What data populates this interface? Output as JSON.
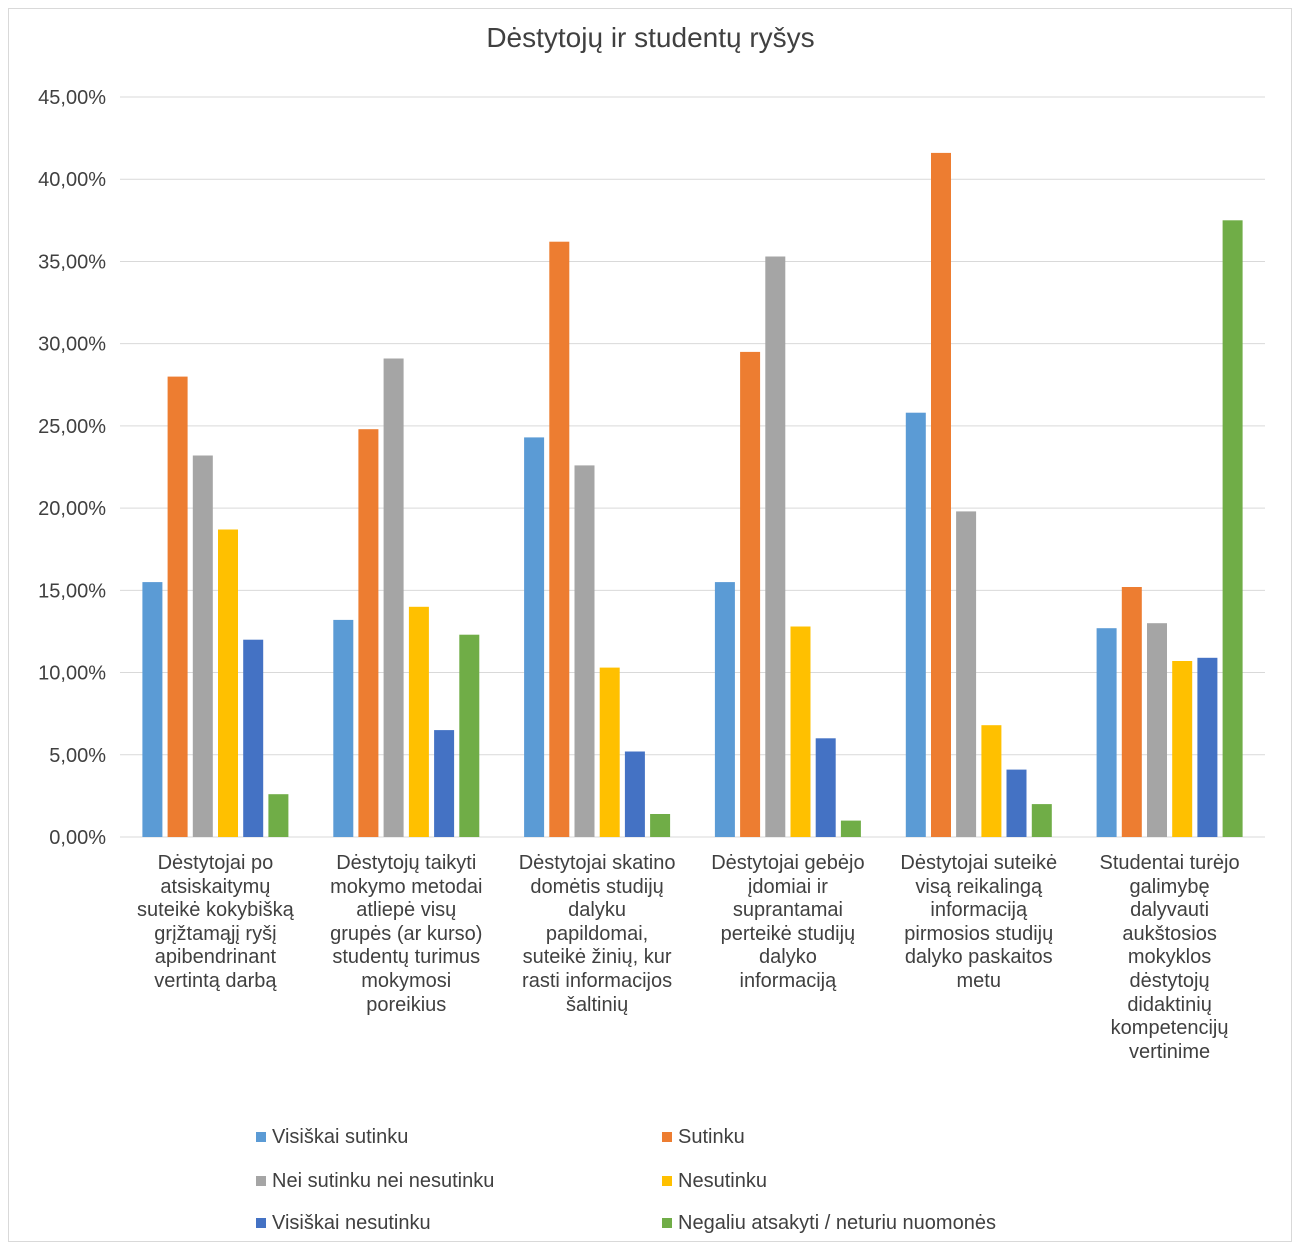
{
  "chart_data": {
    "type": "bar",
    "title": "Dėstytojų ir studentų ryšys",
    "xlabel": "",
    "ylabel": "",
    "ylim": [
      0,
      0.45
    ],
    "yticks": [
      "0,00%",
      "5,00%",
      "10,00%",
      "15,00%",
      "20,00%",
      "25,00%",
      "30,00%",
      "35,00%",
      "40,00%",
      "45,00%"
    ],
    "grid": true,
    "legend_position": "bottom",
    "categories": [
      "Dėstytojai po\natsiskaitymų\nsuteikė kokybišką\ngrįžtamąjį ryšį\napibendrinant\nvertintą darbą",
      "Dėstytojų taikyti\nmokymo metodai\natliepė visų\ngrupės (ar kurso)\nstudentų turimus\nmokymosi\nporeikius",
      "Dėstytojai skatino\ndomėtis studijų\ndalyku\npapildomai,\nsuteikė žinių, kur\nrasti informacijos\nšaltinių",
      "Dėstytojai gebėjo\nįdomiai ir\nsuprantamai\nperteikė studijų\ndalyko\ninformaciją",
      "Dėstytojai suteikė\nvisą reikalingą\ninformaciją\npirmosios studijų\ndalyko paskaitos\nmetu",
      "Studentai turėjo\ngalimybę\ndalyvauti\naukštosios\nmokyklos\ndėstytojų\ndidaktinių\nkompetencijų\nvertinime"
    ],
    "series": [
      {
        "name": "Visiškai sutinku",
        "color": "#5b9bd5",
        "values": [
          0.155,
          0.132,
          0.243,
          0.155,
          0.258,
          0.127
        ]
      },
      {
        "name": "Sutinku",
        "color": "#ed7d31",
        "values": [
          0.28,
          0.248,
          0.362,
          0.295,
          0.416,
          0.152
        ]
      },
      {
        "name": "Nei sutinku nei nesutinku",
        "color": "#a5a5a5",
        "values": [
          0.232,
          0.291,
          0.226,
          0.353,
          0.198,
          0.13
        ]
      },
      {
        "name": "Nesutinku",
        "color": "#ffc000",
        "values": [
          0.187,
          0.14,
          0.103,
          0.128,
          0.068,
          0.107
        ]
      },
      {
        "name": "Visiškai nesutinku",
        "color": "#4472c4",
        "values": [
          0.12,
          0.065,
          0.052,
          0.06,
          0.041,
          0.109
        ]
      },
      {
        "name": "Negaliu atsakyti / neturiu nuomonės",
        "color": "#70ad47",
        "values": [
          0.026,
          0.123,
          0.014,
          0.01,
          0.02,
          0.375
        ]
      }
    ]
  }
}
